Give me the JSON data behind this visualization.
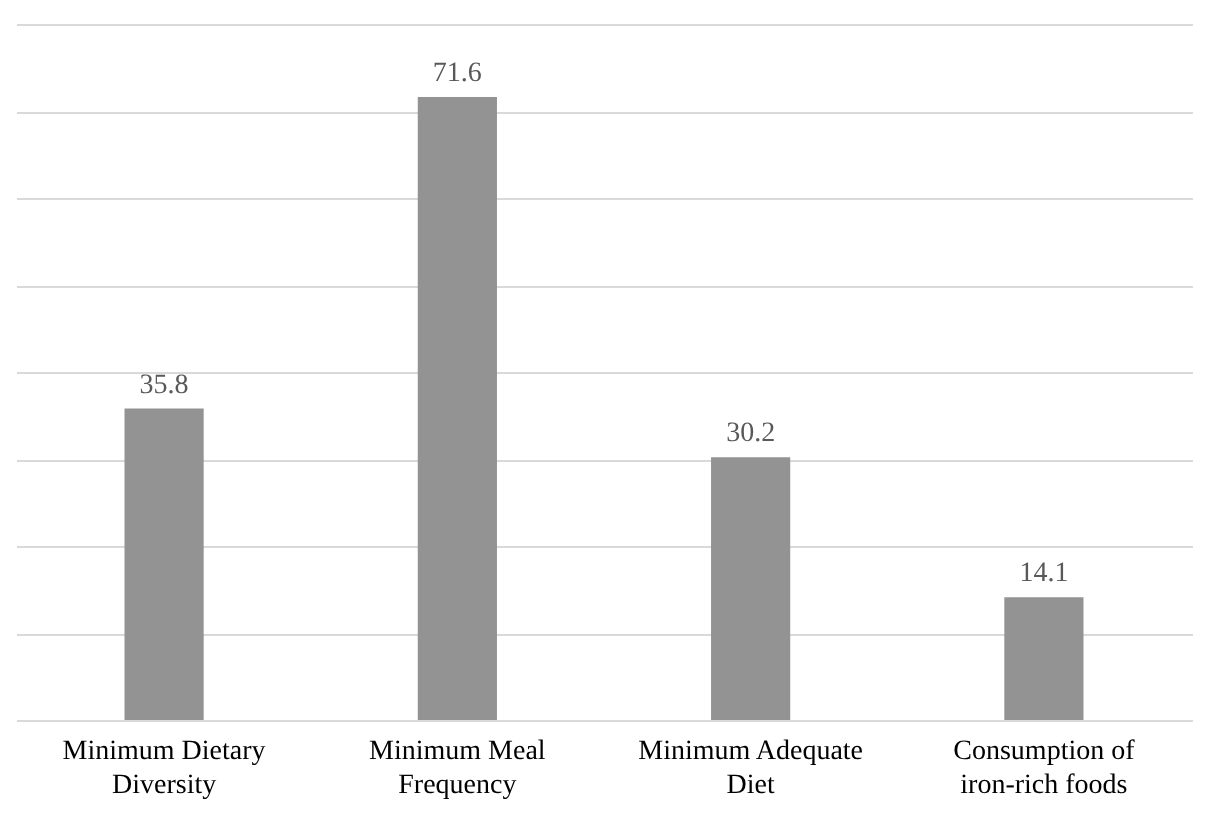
{
  "chart_data": {
    "type": "bar",
    "categories": [
      "Minimum Dietary Diversity",
      "Minimum Meal Frequency",
      "Minimum Adequate Diet",
      "Consumption of iron-rich foods"
    ],
    "values": [
      35.8,
      71.6,
      30.2,
      14.1
    ],
    "color": "#939393",
    "ylim": [
      0,
      80
    ],
    "yticks": [
      {
        "value": 0,
        "label": null
      },
      {
        "value": 10,
        "label": null
      },
      {
        "value": 20,
        "label": null
      },
      {
        "value": 30,
        "label": null
      },
      {
        "value": 40,
        "label": null
      },
      {
        "value": 50,
        "label": null
      },
      {
        "value": 60,
        "label": null
      },
      {
        "value": 70,
        "label": null
      },
      {
        "value": 80,
        "label": null
      }
    ],
    "grid": true,
    "data_labels": true,
    "tick_labels": "x"
  }
}
